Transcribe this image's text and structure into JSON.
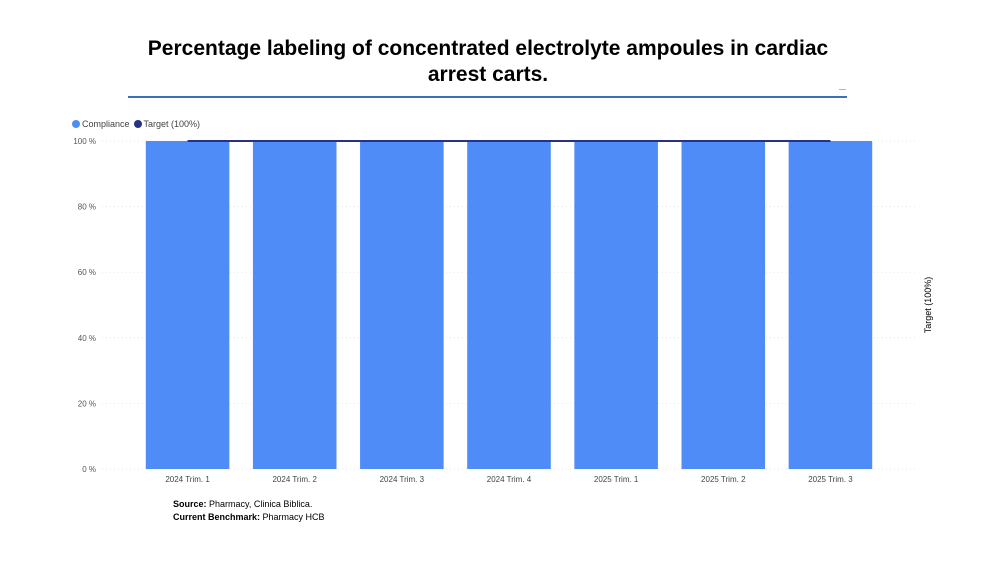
{
  "title": "Percentage labeling of concentrated electrolyte ampoules in cardiac arrest carts.",
  "legend": [
    {
      "label": "Compliance",
      "color": "#4f8cf7"
    },
    {
      "label": "Target (100%)",
      "color": "#253286"
    }
  ],
  "secondary_axis_label": "Target (100%)",
  "footer": {
    "source_label": "Source:",
    "source_value": "Pharmacy, Clinica Biblica.",
    "benchmark_label": "Current Benchmark:",
    "benchmark_value": "Pharmacy HCB"
  },
  "chart_data": {
    "type": "bar",
    "title": "Percentage labeling of concentrated electrolyte ampoules in cardiac arrest carts.",
    "categories": [
      "2024 Trim. 1",
      "2024 Trim. 2",
      "2024 Trim. 3",
      "2024 Trim. 4",
      "2025 Trim. 1",
      "2025 Trim. 2",
      "2025 Trim. 3"
    ],
    "series": [
      {
        "name": "Compliance",
        "type": "bar",
        "color": "#4f8cf7",
        "values": [
          100,
          100,
          100,
          100,
          100,
          100,
          100
        ]
      },
      {
        "name": "Target (100%)",
        "type": "line",
        "color": "#253286",
        "values": [
          100,
          100,
          100,
          100,
          100,
          100,
          100
        ]
      }
    ],
    "ylim": [
      0,
      100
    ],
    "yticks": [
      "0 %",
      "20 %",
      "40 %",
      "60 %",
      "80 %",
      "100 %"
    ],
    "ytick_values": [
      0,
      20,
      40,
      60,
      80,
      100
    ],
    "grid": true,
    "legend_position": "top-left"
  }
}
